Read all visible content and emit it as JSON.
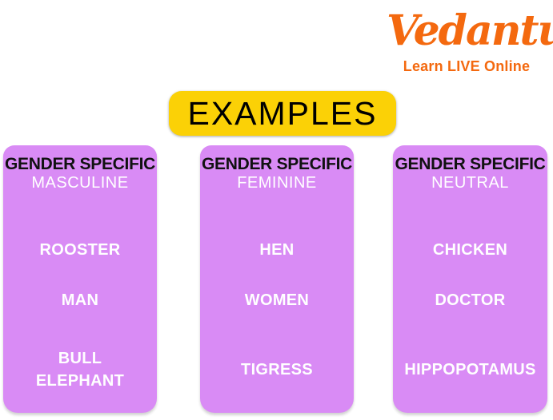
{
  "logo": {
    "brand": "Vedantu",
    "tagline": "Learn LIVE Online",
    "color": "#F4690F"
  },
  "banner": {
    "label": "EXAMPLES",
    "bg": "#FBD106",
    "text_color": "#000000"
  },
  "columns": [
    {
      "title": "GENDER SPECIFIC",
      "subtitle": "MASCULINE",
      "items": [
        "ROOSTER",
        "MAN",
        "BULL ELEPHANT"
      ]
    },
    {
      "title": "GENDER SPECIFIC",
      "subtitle": "FEMININE",
      "items": [
        "HEN",
        "WOMEN",
        "TIGRESS"
      ]
    },
    {
      "title": "GENDER SPECIFIC",
      "subtitle": "NEUTRAL",
      "items": [
        "CHICKEN",
        "DOCTOR",
        "HIPPOPOTAMUS"
      ]
    }
  ],
  "colors": {
    "column_bg": "#D98BF5",
    "banner_bg": "#FBD106",
    "brand_orange": "#F4690F",
    "title_text": "#111111",
    "word_text": "#FFFFFF"
  }
}
